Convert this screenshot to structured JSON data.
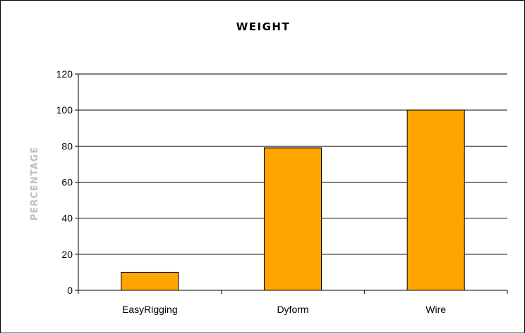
{
  "chart_data": {
    "type": "bar",
    "title": "WEIGHT",
    "ylabel": "PERCENTAGE",
    "xlabel": "",
    "categories": [
      "EasyRigging",
      "Dyform",
      "Wire"
    ],
    "values": [
      10,
      79,
      100
    ],
    "ylim": [
      0,
      120
    ],
    "yticks": [
      0,
      20,
      40,
      60,
      80,
      100,
      120
    ],
    "ytick_labels": [
      "0",
      "20",
      "40",
      "60",
      "80",
      "100",
      "120"
    ],
    "grid": true,
    "legend": "none",
    "bar_color": "#FFA500",
    "bar_edge_color": "#000000",
    "ylabel_color": "#C0C0C0"
  }
}
